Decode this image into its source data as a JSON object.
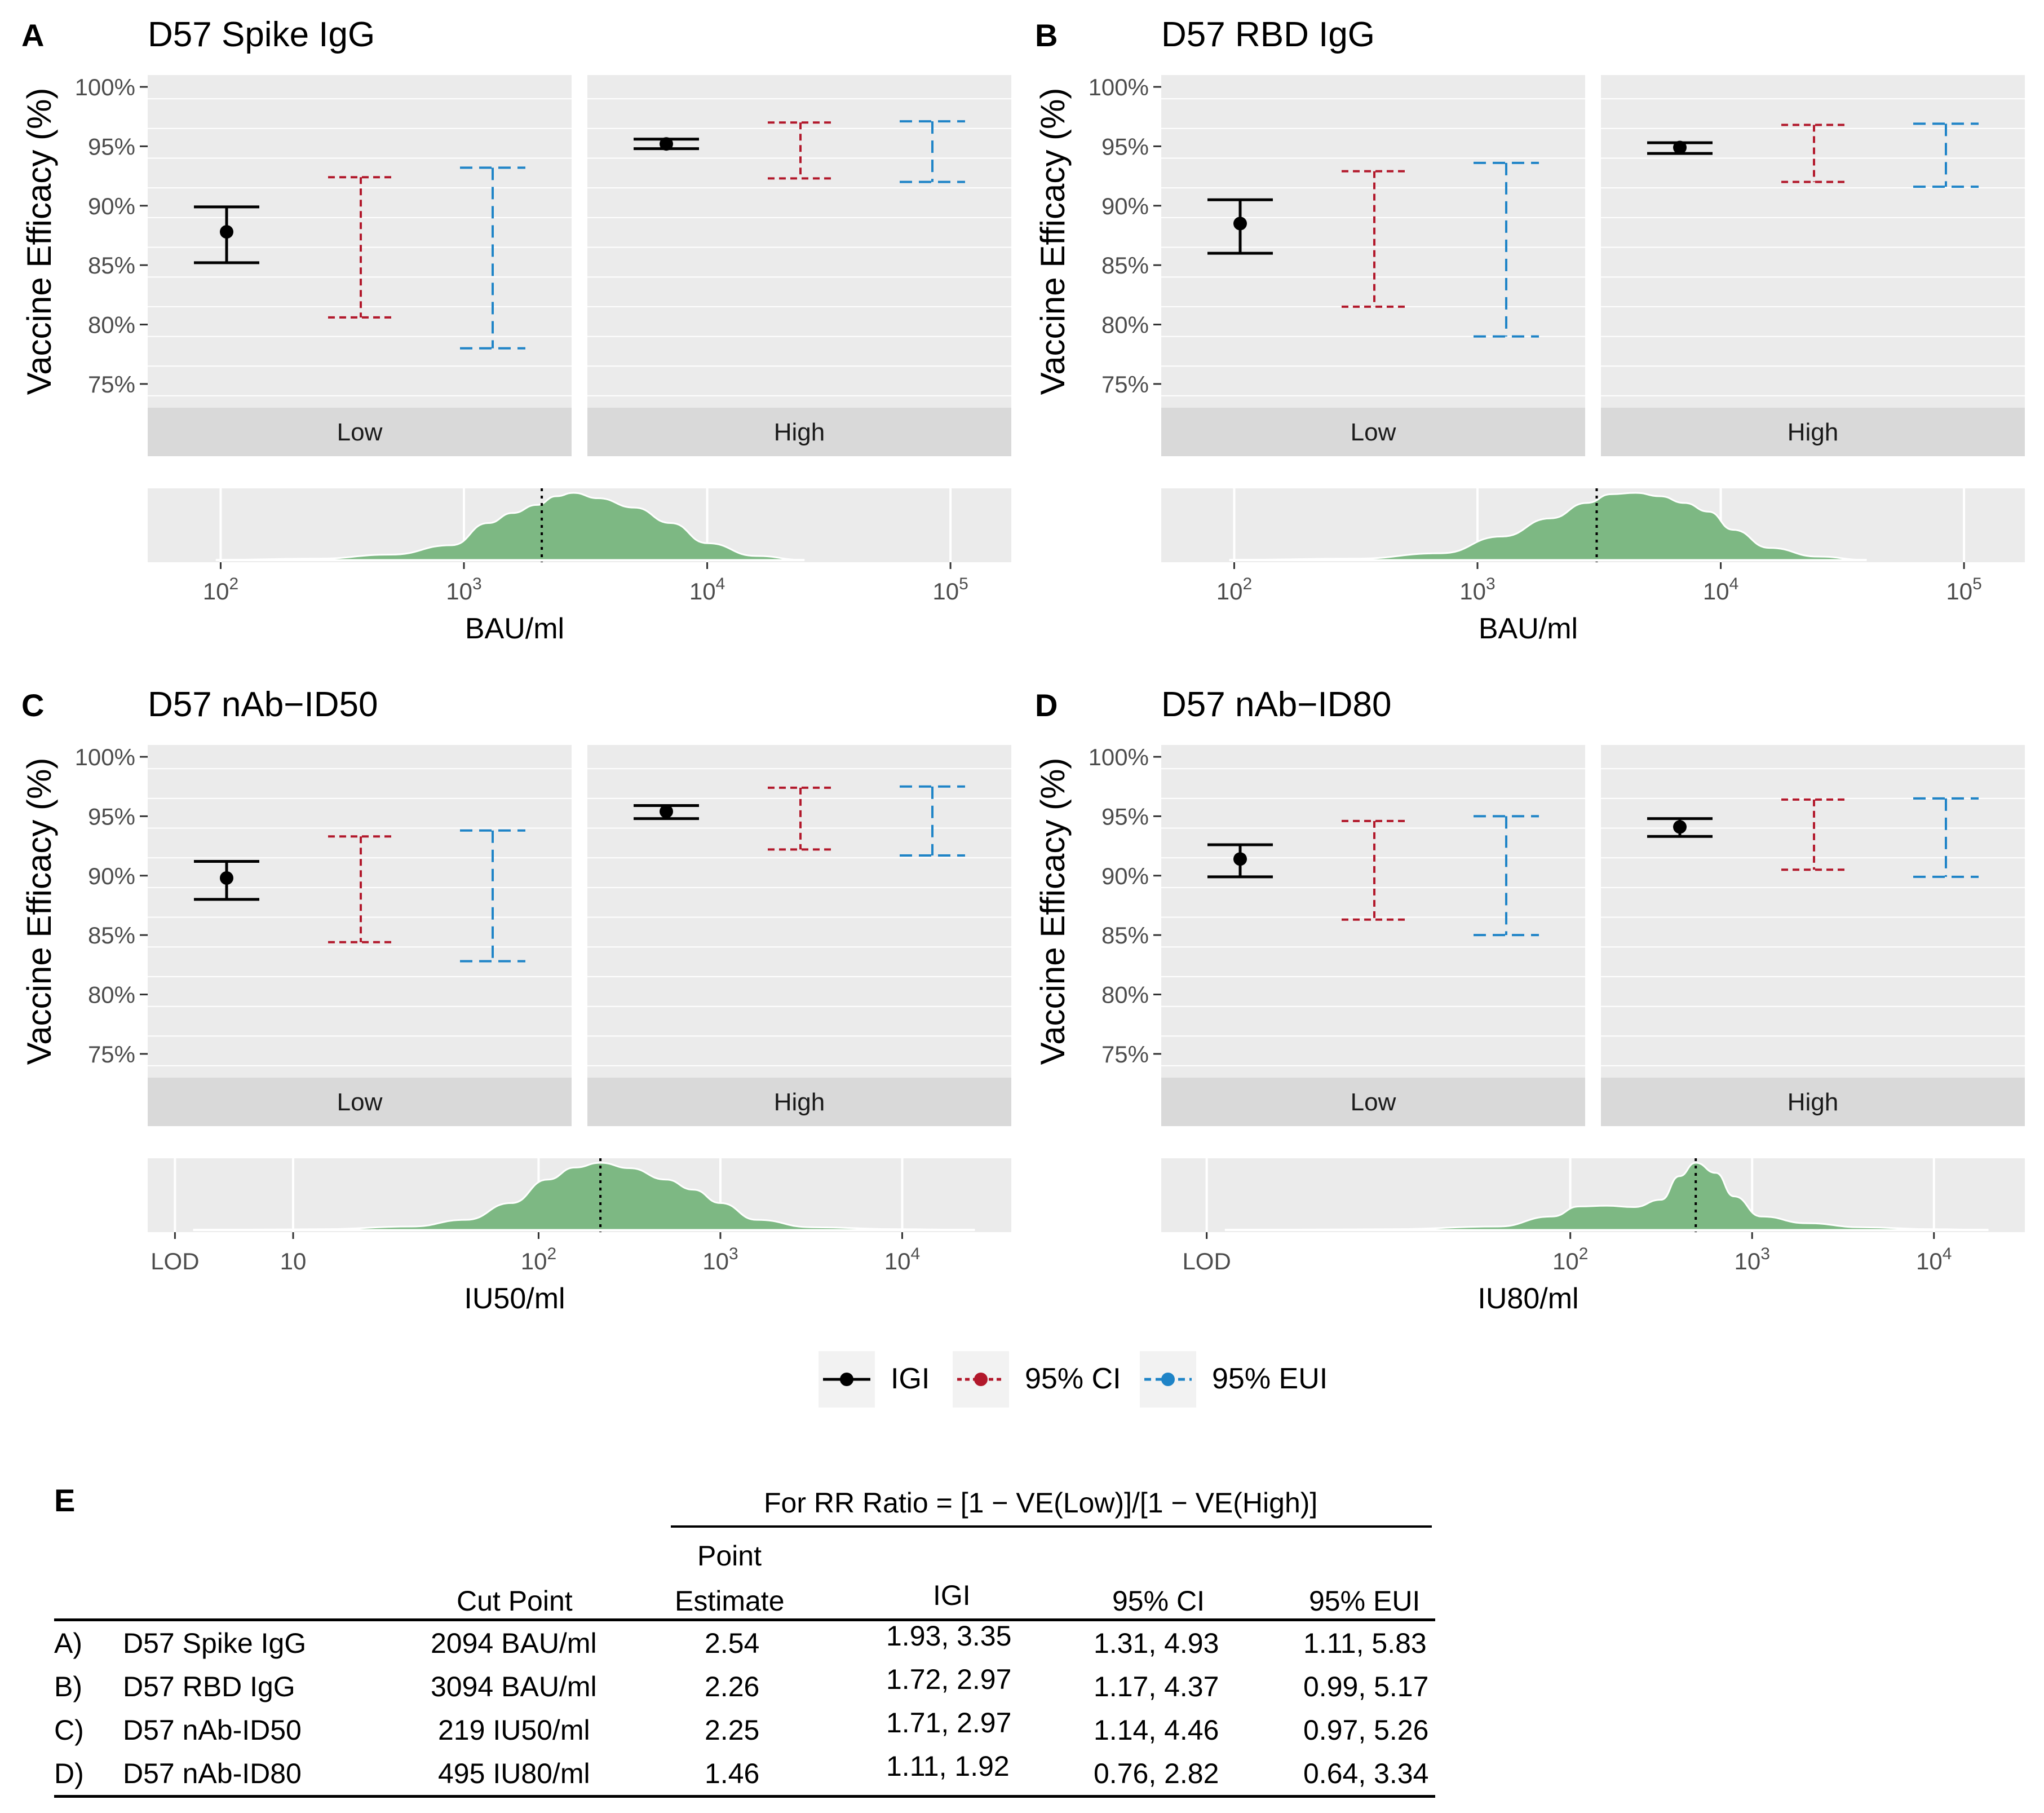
{
  "figure": {
    "legend": [
      {
        "name": "IGI",
        "color": "#000000",
        "dash": "solid"
      },
      {
        "name": "95% CI",
        "color": "#b2182b",
        "dash": "dotted"
      },
      {
        "name": "95% EUI",
        "color": "#1f84c7",
        "dash": "dashed"
      }
    ],
    "colors": {
      "panel_bg": "#ebebeb",
      "strip_bg": "#d9d9d9",
      "density_fill": "#7db883",
      "grid": "#ffffff"
    }
  },
  "chart_data": [
    {
      "type": "errorbar",
      "panel_letter": "A",
      "title": "D57 Spike IgG",
      "ylabel": "Vaccine Efficacy (%)",
      "ylim": [
        73,
        101
      ],
      "y_ticks": [
        "100%",
        "95%",
        "90%",
        "85%",
        "80%",
        "75%"
      ],
      "facets": [
        {
          "label": "Low",
          "point": 87.8,
          "IGI": [
            85.2,
            89.9
          ],
          "CI_95": [
            80.6,
            92.4
          ],
          "EUI_95": [
            78.0,
            93.2
          ]
        },
        {
          "label": "High",
          "point": 95.2,
          "IGI": [
            94.8,
            95.6
          ],
          "CI_95": [
            92.3,
            97.0
          ],
          "EUI_95": [
            92.0,
            97.1
          ]
        }
      ],
      "density": {
        "xlabel": "BAU/ml",
        "scale": "log10",
        "xlim": [
          1.7,
          5.25
        ],
        "x_ticks": [
          "10^2",
          "10^3",
          "10^4",
          "10^5"
        ],
        "x_tick_values": [
          2,
          3,
          4,
          5
        ],
        "cut_log10": 3.32,
        "curve_x": [
          1.98,
          2.4,
          2.7,
          2.95,
          3.1,
          3.2,
          3.3,
          3.38,
          3.45,
          3.55,
          3.7,
          3.85,
          4.0,
          4.2,
          4.4
        ],
        "curve_y": [
          0.0,
          0.02,
          0.08,
          0.22,
          0.55,
          0.7,
          0.82,
          0.95,
          1.0,
          0.92,
          0.78,
          0.55,
          0.25,
          0.06,
          0.0
        ]
      }
    },
    {
      "type": "errorbar",
      "panel_letter": "B",
      "title": "D57 RBD IgG",
      "ylabel": "Vaccine Efficacy (%)",
      "ylim": [
        73,
        101
      ],
      "y_ticks": [
        "100%",
        "95%",
        "90%",
        "85%",
        "80%",
        "75%"
      ],
      "facets": [
        {
          "label": "Low",
          "point": 88.5,
          "IGI": [
            86.0,
            90.5
          ],
          "CI_95": [
            81.5,
            92.9
          ],
          "EUI_95": [
            79.0,
            93.6
          ]
        },
        {
          "label": "High",
          "point": 94.9,
          "IGI": [
            94.4,
            95.3
          ],
          "CI_95": [
            92.0,
            96.8
          ],
          "EUI_95": [
            91.6,
            96.9
          ]
        }
      ],
      "density": {
        "xlabel": "BAU/ml",
        "scale": "log10",
        "xlim": [
          1.7,
          5.25
        ],
        "x_ticks": [
          "10^2",
          "10^3",
          "10^4",
          "10^5"
        ],
        "x_tick_values": [
          2,
          3,
          4,
          5
        ],
        "cut_log10": 3.49,
        "curve_x": [
          1.98,
          2.5,
          2.85,
          3.1,
          3.3,
          3.45,
          3.55,
          3.65,
          3.75,
          3.85,
          3.95,
          4.05,
          4.2,
          4.4,
          4.6
        ],
        "curve_y": [
          0.0,
          0.02,
          0.1,
          0.35,
          0.62,
          0.85,
          0.98,
          1.0,
          0.95,
          0.85,
          0.72,
          0.45,
          0.18,
          0.05,
          0.0
        ]
      }
    },
    {
      "type": "errorbar",
      "panel_letter": "C",
      "title": "D57 nAb−ID50",
      "ylabel": "Vaccine Efficacy (%)",
      "ylim": [
        73,
        101
      ],
      "y_ticks": [
        "100%",
        "95%",
        "90%",
        "85%",
        "80%",
        "75%"
      ],
      "facets": [
        {
          "label": "Low",
          "point": 89.8,
          "IGI": [
            88.0,
            91.2
          ],
          "CI_95": [
            84.4,
            93.3
          ],
          "EUI_95": [
            82.8,
            93.8
          ]
        },
        {
          "label": "High",
          "point": 95.4,
          "IGI": [
            94.8,
            95.9
          ],
          "CI_95": [
            92.2,
            97.4
          ],
          "EUI_95": [
            91.7,
            97.5
          ]
        }
      ],
      "density": {
        "xlabel": "IU50/ml",
        "scale": "log10",
        "xlim": [
          -0.15,
          4.6
        ],
        "x_ticks": [
          "LOD",
          "10",
          "10^2",
          "10^3",
          "10^4"
        ],
        "x_tick_values": [
          0.0,
          0.65,
          2.0,
          3.0,
          4.0
        ],
        "cut_log10": 2.34,
        "curve_x": [
          0.1,
          0.8,
          1.3,
          1.6,
          1.85,
          2.05,
          2.2,
          2.34,
          2.5,
          2.7,
          2.85,
          3.0,
          3.2,
          3.5,
          4.0,
          4.4
        ],
        "curve_y": [
          0.0,
          0.01,
          0.05,
          0.15,
          0.4,
          0.75,
          0.93,
          1.0,
          0.92,
          0.75,
          0.6,
          0.4,
          0.15,
          0.04,
          0.01,
          0.0
        ]
      }
    },
    {
      "type": "errorbar",
      "panel_letter": "D",
      "title": "D57 nAb−ID80",
      "ylabel": "Vaccine Efficacy (%)",
      "ylim": [
        73,
        101
      ],
      "y_ticks": [
        "100%",
        "95%",
        "90%",
        "85%",
        "80%",
        "75%"
      ],
      "facets": [
        {
          "label": "Low",
          "point": 91.4,
          "IGI": [
            89.9,
            92.6
          ],
          "CI_95": [
            86.3,
            94.6
          ],
          "EUI_95": [
            85.0,
            95.0
          ]
        },
        {
          "label": "High",
          "point": 94.1,
          "IGI": [
            93.3,
            94.8
          ],
          "CI_95": [
            90.5,
            96.4
          ],
          "EUI_95": [
            89.9,
            96.5
          ]
        }
      ],
      "density": {
        "xlabel": "IU80/ml",
        "scale": "log10",
        "xlim": [
          -0.25,
          4.5
        ],
        "x_ticks": [
          "LOD",
          "10^2",
          "10^3",
          "10^4"
        ],
        "x_tick_values": [
          0.0,
          2.0,
          3.0,
          4.0
        ],
        "cut_log10": 2.69,
        "curve_x": [
          0.1,
          1.0,
          1.6,
          1.9,
          2.05,
          2.2,
          2.35,
          2.5,
          2.6,
          2.69,
          2.8,
          2.9,
          3.05,
          3.3,
          3.6,
          4.0,
          4.3
        ],
        "curve_y": [
          0.0,
          0.01,
          0.05,
          0.2,
          0.35,
          0.36,
          0.34,
          0.45,
          0.8,
          1.0,
          0.85,
          0.5,
          0.2,
          0.1,
          0.04,
          0.01,
          0.0
        ]
      }
    },
    {
      "type": "table",
      "panel_letter": "E",
      "spanner": "For RR Ratio = [1 − VE(Low)]/[1 − VE(High)]",
      "columns": [
        "Cut Point",
        "Point",
        "Estimate",
        "IGI",
        "95% CI",
        "95% EUI"
      ],
      "rows": [
        {
          "id": "A)",
          "marker": "D57 Spike IgG",
          "cut": "2094 BAU/ml",
          "estimate": "2.54",
          "igi": "1.93, 3.35",
          "ci": "1.31, 4.93",
          "eui": "1.11, 5.83"
        },
        {
          "id": "B)",
          "marker": "D57 RBD IgG",
          "cut": "3094 BAU/ml",
          "estimate": "2.26",
          "igi": "1.72, 2.97",
          "ci": "1.17, 4.37",
          "eui": "0.99, 5.17"
        },
        {
          "id": "C)",
          "marker": "D57 nAb-ID50",
          "cut": "219 IU50/ml",
          "estimate": "2.25",
          "igi": "1.71, 2.97",
          "ci": "1.14, 4.46",
          "eui": "0.97, 5.26"
        },
        {
          "id": "D)",
          "marker": "D57 nAb-ID80",
          "cut": "495 IU80/ml",
          "estimate": "1.46",
          "igi": "1.11, 1.92",
          "ci": "0.76, 2.82",
          "eui": "0.64, 3.34"
        }
      ]
    }
  ]
}
